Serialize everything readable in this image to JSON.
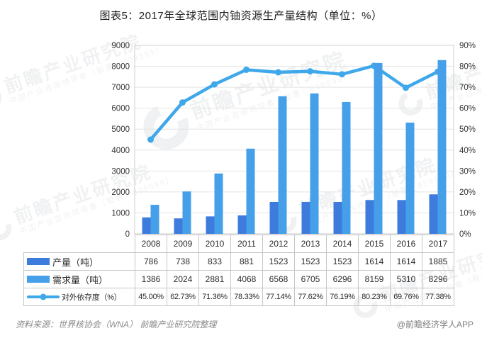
{
  "title": "图表5：2017年全球范围内铀资源生产量结构（单位：%）",
  "colors": {
    "production": "#3D7CDC",
    "demand": "#459FE9",
    "line": "#3FA8EA",
    "grid": "#e4e4e4",
    "plot_border": "#cfcfcf",
    "axis_text": "#333333"
  },
  "chart_data": {
    "type": "bar+line combo",
    "categories": [
      "2008",
      "2009",
      "2010",
      "2011",
      "2012",
      "2013",
      "2014",
      "2015",
      "2016",
      "2017"
    ],
    "series": [
      {
        "name": "产量（吨）",
        "type": "bar",
        "axis": "left",
        "values": [
          786,
          738,
          833,
          881,
          1523,
          1523,
          1523,
          1614,
          1614,
          1885
        ]
      },
      {
        "name": "需求量（吨）",
        "type": "bar",
        "axis": "left",
        "values": [
          1386,
          2024,
          2881,
          4068,
          6568,
          6705,
          6296,
          8159,
          5310,
          8296
        ]
      },
      {
        "name": "对外依存度（%）",
        "type": "line",
        "axis": "right",
        "values": [
          45.0,
          62.73,
          71.36,
          78.33,
          77.14,
          77.62,
          76.19,
          80.23,
          69.76,
          77.38
        ]
      }
    ],
    "left_axis": {
      "min": 0,
      "max": 9000,
      "step": 1000,
      "ticks": [
        "9000",
        "8000",
        "7000",
        "6000",
        "5000",
        "4000",
        "3000",
        "2000",
        "1000",
        "0"
      ]
    },
    "right_axis": {
      "min": 0,
      "max": 90,
      "step": 10,
      "ticks": [
        "90%",
        "80%",
        "70%",
        "60%",
        "50%",
        "40%",
        "30%",
        "20%",
        "10%",
        "0%"
      ]
    },
    "grid": true,
    "legend_position": "table-left"
  },
  "table": {
    "rows": [
      {
        "label": "产量（吨）",
        "swatch": "bar-production",
        "values": [
          "786",
          "738",
          "833",
          "881",
          "1523",
          "1523",
          "1523",
          "1614",
          "1614",
          "1885"
        ]
      },
      {
        "label": "需求量（吨）",
        "swatch": "bar-demand",
        "values": [
          "1386",
          "2024",
          "2881",
          "4068",
          "6568",
          "6705",
          "6296",
          "8159",
          "5310",
          "8296"
        ]
      },
      {
        "label": "对外依存度（%）",
        "swatch": "line",
        "values": [
          "45.00%",
          "62.73%",
          "71.36%",
          "78.33%",
          "77.14%",
          "77.62%",
          "76.19%",
          "80.23%",
          "69.76%",
          "77.38%"
        ]
      }
    ]
  },
  "watermark": {
    "text_large": "前瞻产业研究院",
    "text_small": "中国产业咨询领导者（股票：839599）"
  },
  "footer": {
    "source": "资料来源：世界核协会（WNA） 前瞻产业研究院整理",
    "credit": "@前瞻经济学人APP"
  }
}
